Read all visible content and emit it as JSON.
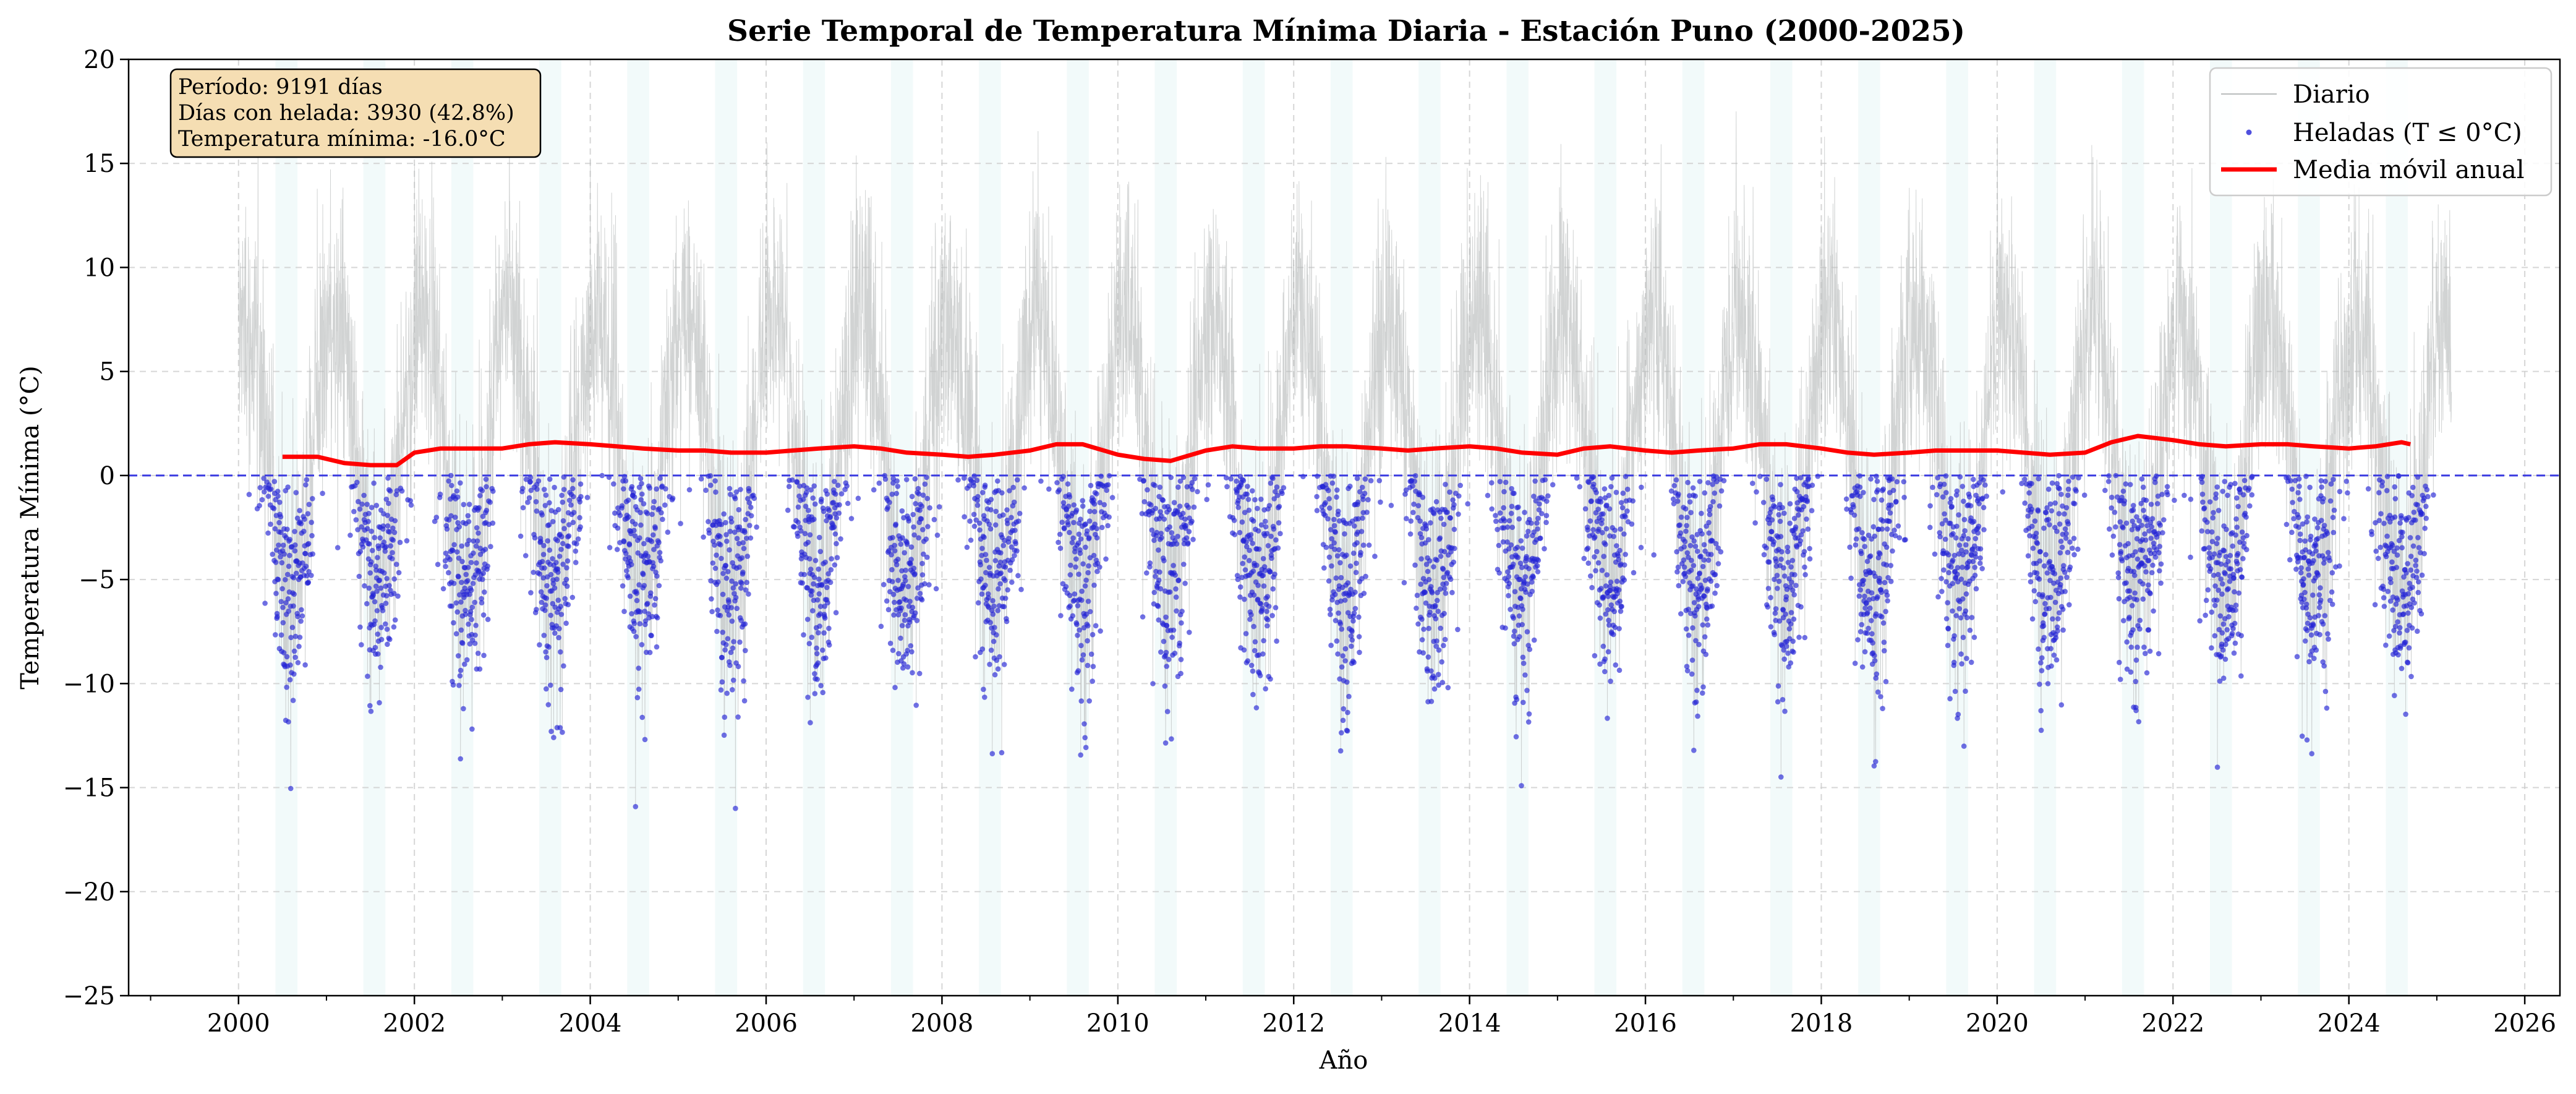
{
  "chart_data": {
    "type": "line",
    "title": "Serie Temporal de Temperatura Mínima Diaria - Estación Puno (2000-2025)",
    "xlabel": "Año",
    "ylabel": "Temperatura Mínima (°C)",
    "xlim": [
      1998.75,
      2026.4
    ],
    "ylim": [
      -25,
      20
    ],
    "x_ticks": [
      "2000",
      "2002",
      "2004",
      "2006",
      "2008",
      "2010",
      "2012",
      "2014",
      "2016",
      "2018",
      "2020",
      "2022",
      "2024",
      "2026"
    ],
    "y_ticks": [
      "20",
      "15",
      "10",
      "5",
      "0",
      "−5",
      "−10",
      "−15",
      "−20",
      "−25"
    ],
    "grid": true,
    "frost_threshold": 0,
    "series": [
      {
        "name": "Diario",
        "color": "#b8bcbc",
        "style": "thin-line",
        "x_range": [
          2000.0,
          2025.17
        ],
        "summary": "Daily minimum temperature; seasonal cycle with peaks near 10–17 °C around each Jan–Feb and troughs near −10 to −16 °C around each Jun–Jul"
      },
      {
        "name": "Heladas (T ≤ 0°C)",
        "color": "#2323d6",
        "style": "points",
        "summary": "Daily values at or below 0 °C, clustered in each mid-year frost season; lowest value −16.0 °C"
      },
      {
        "name": "Media móvil anual",
        "color": "#ff0000",
        "style": "thick-line",
        "x": [
          2000.5,
          2000.9,
          2001.2,
          2001.5,
          2001.8,
          2002.0,
          2002.3,
          2002.6,
          2003.0,
          2003.3,
          2003.6,
          2004.0,
          2004.3,
          2004.6,
          2005.0,
          2005.3,
          2005.6,
          2006.0,
          2006.3,
          2006.6,
          2007.0,
          2007.3,
          2007.6,
          2008.0,
          2008.3,
          2008.6,
          2009.0,
          2009.3,
          2009.6,
          2010.0,
          2010.3,
          2010.6,
          2011.0,
          2011.3,
          2011.6,
          2012.0,
          2012.3,
          2012.6,
          2013.0,
          2013.3,
          2013.6,
          2014.0,
          2014.3,
          2014.6,
          2015.0,
          2015.3,
          2015.6,
          2016.0,
          2016.3,
          2016.6,
          2017.0,
          2017.3,
          2017.6,
          2018.0,
          2018.3,
          2018.6,
          2019.0,
          2019.3,
          2019.6,
          2020.0,
          2020.3,
          2020.6,
          2021.0,
          2021.3,
          2021.6,
          2022.0,
          2022.3,
          2022.6,
          2023.0,
          2023.3,
          2023.6,
          2024.0,
          2024.3,
          2024.6,
          2024.7
        ],
        "y": [
          0.9,
          0.9,
          0.6,
          0.5,
          0.5,
          1.1,
          1.3,
          1.3,
          1.3,
          1.5,
          1.6,
          1.5,
          1.4,
          1.3,
          1.2,
          1.2,
          1.1,
          1.1,
          1.2,
          1.3,
          1.4,
          1.3,
          1.1,
          1.0,
          0.9,
          1.0,
          1.2,
          1.5,
          1.5,
          1.0,
          0.8,
          0.7,
          1.2,
          1.4,
          1.3,
          1.3,
          1.4,
          1.4,
          1.3,
          1.2,
          1.3,
          1.4,
          1.3,
          1.1,
          1.0,
          1.3,
          1.4,
          1.2,
          1.1,
          1.2,
          1.3,
          1.5,
          1.5,
          1.3,
          1.1,
          1.0,
          1.1,
          1.2,
          1.2,
          1.2,
          1.1,
          1.0,
          1.1,
          1.6,
          1.9,
          1.7,
          1.5,
          1.4,
          1.5,
          1.5,
          1.4,
          1.3,
          1.4,
          1.6,
          1.5
        ]
      }
    ],
    "shaded_periods": [
      [
        2000.42,
        2000.67
      ],
      [
        2001.42,
        2001.67
      ],
      [
        2002.42,
        2002.67
      ],
      [
        2003.42,
        2003.67
      ],
      [
        2004.42,
        2004.67
      ],
      [
        2005.42,
        2005.67
      ],
      [
        2006.42,
        2006.67
      ],
      [
        2007.42,
        2007.67
      ],
      [
        2008.42,
        2008.67
      ],
      [
        2009.42,
        2009.67
      ],
      [
        2010.42,
        2010.67
      ],
      [
        2011.42,
        2011.67
      ],
      [
        2012.42,
        2012.67
      ],
      [
        2013.42,
        2013.67
      ],
      [
        2014.42,
        2014.67
      ],
      [
        2015.42,
        2015.67
      ],
      [
        2016.42,
        2016.67
      ],
      [
        2017.42,
        2017.67
      ],
      [
        2018.42,
        2018.67
      ],
      [
        2019.42,
        2019.67
      ],
      [
        2020.42,
        2020.67
      ],
      [
        2021.42,
        2021.67
      ],
      [
        2022.42,
        2022.67
      ],
      [
        2023.42,
        2023.67
      ],
      [
        2024.42,
        2024.67
      ]
    ],
    "legend": {
      "placement": "top-right",
      "entries": [
        "Diario",
        "Heladas (T ≤ 0°C)",
        "Media móvil anual"
      ]
    },
    "info_box": {
      "placement": "top-left",
      "lines": [
        "Período: 9191 días",
        "Días con helada: 3930 (42.8%)",
        "Temperatura mínima: -16.0°C"
      ]
    },
    "colors": {
      "daily": "#b8bcbc",
      "frost": "#2323d6",
      "moving_average": "#ff0000",
      "threshold": "#3a3ae0",
      "season_shade": "#e6f6f6",
      "info_box_fill": "#f5deb3"
    }
  }
}
